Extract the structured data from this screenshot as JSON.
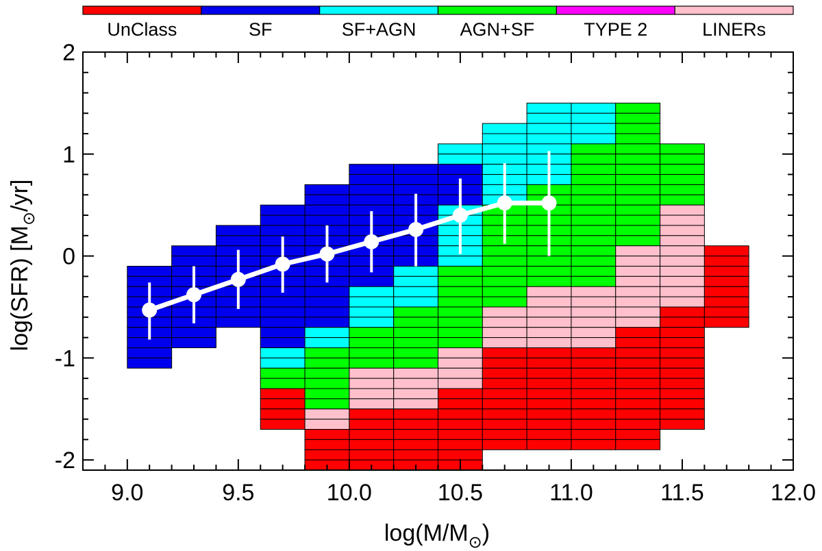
{
  "chart_data": {
    "type": "heatmap",
    "title": "",
    "xlabel": "log(M/M",
    "ylabel": "log(SFR) [M",
    "ylabel_suffix": "/yr]",
    "sun_symbol": "⊙",
    "xlim": [
      8.8,
      12.0
    ],
    "ylim": [
      -2.1,
      2.0
    ],
    "x_ticks": [
      {
        "value": 9.0,
        "label": "9.0"
      },
      {
        "value": 9.5,
        "label": "9.5"
      },
      {
        "value": 10.0,
        "label": "10.0"
      },
      {
        "value": 10.5,
        "label": "10.5"
      },
      {
        "value": 11.0,
        "label": "11.0"
      },
      {
        "value": 11.5,
        "label": "11.5"
      },
      {
        "value": 12.0,
        "label": "12.0"
      }
    ],
    "y_ticks": [
      {
        "value": 2,
        "label": "2"
      },
      {
        "value": 1,
        "label": "1"
      },
      {
        "value": 0,
        "label": "0"
      },
      {
        "value": -1,
        "label": "-1"
      },
      {
        "value": -2,
        "label": "-2"
      }
    ],
    "x_minor_step": 0.1,
    "y_minor_step": 0.2,
    "cell_width": 0.2,
    "cell_height": 0.1,
    "classes": [
      {
        "code": "U",
        "name": "UnClass",
        "color": "#ff0000"
      },
      {
        "code": "S",
        "name": "SF",
        "color": "#0000ee"
      },
      {
        "code": "C",
        "name": "SF+AGN",
        "color": "#00ffff"
      },
      {
        "code": "G",
        "name": "AGN+SF",
        "color": "#00ff00"
      },
      {
        "code": "T",
        "name": "TYPE 2",
        "color": "#ff00ff"
      },
      {
        "code": "L",
        "name": "LINERs",
        "color": "#ffc0cb"
      }
    ],
    "columns": [
      {
        "x0": 9.0,
        "y_top": -0.1,
        "cells": "SSSSSSSSSS"
      },
      {
        "x0": 9.2,
        "y_top": 0.1,
        "cells": "SSSSSSSSSS"
      },
      {
        "x0": 9.4,
        "y_top": 0.3,
        "cells": "SSSSSSSSSS"
      },
      {
        "x0": 9.6,
        "y_top": 0.5,
        "cells": "SSSSSSSSSSSSSSCCGGUUUU"
      },
      {
        "x0": 9.8,
        "y_top": 0.7,
        "cells": "SSSSSSSSSSSSSSCCGGGGGGLLUUUU"
      },
      {
        "x0": 10.0,
        "y_top": 0.9,
        "cells": "SSSSSSSSSSSSCCCCGGGGLLLLUUUUUU"
      },
      {
        "x0": 10.2,
        "y_top": 0.9,
        "cells": "SSSSSSSSSSCCCCGGGGGGLLLLUUUUUU"
      },
      {
        "x0": 10.4,
        "y_top": 1.1,
        "cells": "CCSSSSCCCCCCGGGGGGGGLLLLUUUUUUUU"
      },
      {
        "x0": 10.6,
        "y_top": 1.3,
        "cells": "CCCCCCCCGGGGGGGGGGLLLLUUUUUUUUUU"
      },
      {
        "x0": 10.8,
        "y_top": 1.5,
        "cells": "CCCCCCCCGGGGGGGGGGLLLLLLUUUUUUUUUU"
      },
      {
        "x0": 11.0,
        "y_top": 1.5,
        "cells": "CCCCGGGGGGGGGGGGGGLLLLLLUUUUUUUUUU"
      },
      {
        "x0": 11.2,
        "y_top": 1.5,
        "cells": "GGGGGGGGGGGGGGLLLLLLLLUUUUUUUUUUUU"
      },
      {
        "x0": 11.4,
        "y_top": 1.1,
        "cells": "GGGGGGLLLLLLLLLLUUUUUUUUUUUU"
      },
      {
        "x0": 11.6,
        "y_top": 0.1,
        "cells": "UUUUUUUU"
      }
    ],
    "series": [
      {
        "name": "median",
        "color": "#ffffff",
        "x": [
          9.1,
          9.3,
          9.5,
          9.7,
          9.9,
          10.1,
          10.3,
          10.5,
          10.7,
          10.9
        ],
        "y": [
          -0.53,
          -0.38,
          -0.23,
          -0.08,
          0.02,
          0.14,
          0.26,
          0.4,
          0.52,
          0.52
        ],
        "err_low": [
          -0.82,
          -0.66,
          -0.52,
          -0.36,
          -0.26,
          -0.16,
          -0.1,
          0.02,
          0.12,
          0.0
        ],
        "err_high": [
          -0.26,
          -0.1,
          0.06,
          0.19,
          0.3,
          0.44,
          0.61,
          0.76,
          0.91,
          1.03
        ]
      }
    ]
  }
}
